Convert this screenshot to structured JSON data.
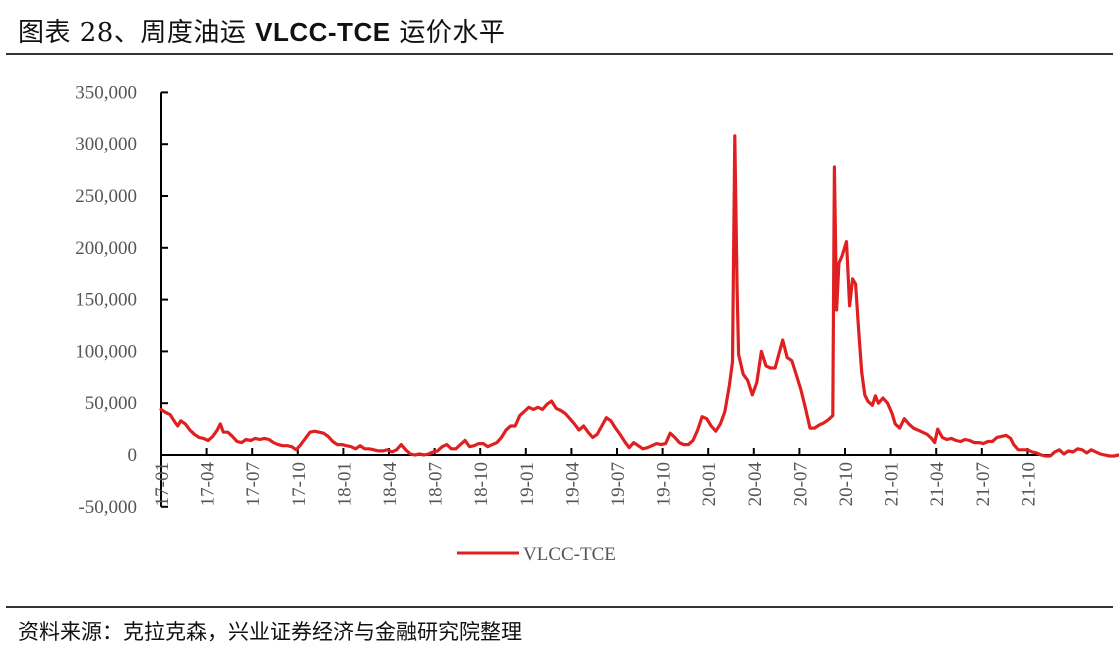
{
  "header": {
    "title_prefix": "图表 28、周度油运 ",
    "title_latin": "VLCC-TCE",
    "title_suffix": " 运价水平"
  },
  "footer": {
    "source": "资料来源：克拉克森，兴业证券经济与金融研究院整理"
  },
  "colors": {
    "series": "#e02020",
    "axis": "#000000",
    "tick_text": "#555555"
  },
  "chart_data": {
    "type": "line",
    "title": "周度油运 VLCC-TCE 运价水平",
    "xlabel": "",
    "ylabel": "",
    "ylim": [
      -50000,
      350000
    ],
    "yticks": [
      -50000,
      0,
      50000,
      100000,
      150000,
      200000,
      250000,
      300000,
      350000
    ],
    "ytick_labels": [
      "-50,000",
      "0",
      "50,000",
      "100,000",
      "150,000",
      "200,000",
      "250,000",
      "300,000",
      "350,000"
    ],
    "xtick_labels": [
      "17-01",
      "17-04",
      "17-07",
      "17-10",
      "18-01",
      "18-04",
      "18-07",
      "18-10",
      "19-01",
      "19-04",
      "19-07",
      "19-10",
      "20-01",
      "20-04",
      "20-07",
      "20-10",
      "21-01",
      "21-04",
      "21-07",
      "21-10"
    ],
    "x_unit": "months since 2017-01",
    "grid": false,
    "legend": {
      "position": "bottom-center",
      "entries": [
        "VLCC-TCE"
      ]
    },
    "series": [
      {
        "name": "VLCC-TCE",
        "points": [
          [
            0.0,
            44000
          ],
          [
            0.3,
            41000
          ],
          [
            0.6,
            39000
          ],
          [
            0.9,
            32000
          ],
          [
            1.1,
            28000
          ],
          [
            1.3,
            33000
          ],
          [
            1.6,
            30000
          ],
          [
            1.9,
            24000
          ],
          [
            2.2,
            20000
          ],
          [
            2.5,
            17000
          ],
          [
            2.8,
            16000
          ],
          [
            3.1,
            14000
          ],
          [
            3.4,
            18000
          ],
          [
            3.7,
            24000
          ],
          [
            3.9,
            30000
          ],
          [
            4.1,
            22000
          ],
          [
            4.4,
            22000
          ],
          [
            4.7,
            18000
          ],
          [
            5.0,
            13000
          ],
          [
            5.3,
            12000
          ],
          [
            5.6,
            15000
          ],
          [
            5.9,
            14000
          ],
          [
            6.2,
            16000
          ],
          [
            6.5,
            15000
          ],
          [
            6.8,
            16000
          ],
          [
            7.1,
            15000
          ],
          [
            7.4,
            12000
          ],
          [
            7.7,
            10000
          ],
          [
            8.0,
            9000
          ],
          [
            8.3,
            9000
          ],
          [
            8.6,
            8000
          ],
          [
            8.9,
            5000
          ],
          [
            9.2,
            10000
          ],
          [
            9.5,
            16000
          ],
          [
            9.8,
            22000
          ],
          [
            10.1,
            23000
          ],
          [
            10.4,
            22000
          ],
          [
            10.7,
            21000
          ],
          [
            11.0,
            18000
          ],
          [
            11.3,
            13000
          ],
          [
            11.6,
            10000
          ],
          [
            11.9,
            10000
          ],
          [
            12.2,
            9000
          ],
          [
            12.5,
            8000
          ],
          [
            12.8,
            6000
          ],
          [
            13.1,
            9000
          ],
          [
            13.4,
            6000
          ],
          [
            13.7,
            6000
          ],
          [
            14.0,
            5000
          ],
          [
            14.3,
            4000
          ],
          [
            14.6,
            4000
          ],
          [
            14.9,
            5000
          ],
          [
            15.2,
            3000
          ],
          [
            15.5,
            5000
          ],
          [
            15.8,
            10000
          ],
          [
            16.1,
            5000
          ],
          [
            16.4,
            1000
          ],
          [
            16.7,
            0
          ],
          [
            17.0,
            1000
          ],
          [
            17.3,
            0
          ],
          [
            17.6,
            1000
          ],
          [
            17.9,
            3000
          ],
          [
            18.2,
            4000
          ],
          [
            18.5,
            8000
          ],
          [
            18.8,
            10000
          ],
          [
            19.1,
            6000
          ],
          [
            19.4,
            6000
          ],
          [
            19.7,
            10000
          ],
          [
            20.0,
            14000
          ],
          [
            20.3,
            8000
          ],
          [
            20.6,
            9000
          ],
          [
            20.9,
            11000
          ],
          [
            21.2,
            11000
          ],
          [
            21.5,
            8000
          ],
          [
            21.8,
            10000
          ],
          [
            22.1,
            12000
          ],
          [
            22.4,
            17000
          ],
          [
            22.7,
            24000
          ],
          [
            23.0,
            28000
          ],
          [
            23.3,
            28000
          ],
          [
            23.6,
            38000
          ],
          [
            23.9,
            42000
          ],
          [
            24.2,
            46000
          ],
          [
            24.5,
            44000
          ],
          [
            24.8,
            46000
          ],
          [
            25.1,
            44000
          ],
          [
            25.4,
            49000
          ],
          [
            25.7,
            52000
          ],
          [
            26.0,
            45000
          ],
          [
            26.3,
            43000
          ],
          [
            26.6,
            40000
          ],
          [
            26.9,
            35000
          ],
          [
            27.2,
            30000
          ],
          [
            27.5,
            24000
          ],
          [
            27.8,
            28000
          ],
          [
            28.1,
            22000
          ],
          [
            28.4,
            17000
          ],
          [
            28.7,
            20000
          ],
          [
            29.0,
            28000
          ],
          [
            29.3,
            36000
          ],
          [
            29.6,
            33000
          ],
          [
            29.9,
            26000
          ],
          [
            30.2,
            20000
          ],
          [
            30.5,
            13000
          ],
          [
            30.8,
            7000
          ],
          [
            31.1,
            12000
          ],
          [
            31.4,
            9000
          ],
          [
            31.7,
            6000
          ],
          [
            32.0,
            7000
          ],
          [
            32.3,
            9000
          ],
          [
            32.6,
            11000
          ],
          [
            32.9,
            10000
          ],
          [
            33.2,
            11000
          ],
          [
            33.5,
            21000
          ],
          [
            33.8,
            17000
          ],
          [
            34.1,
            12000
          ],
          [
            34.4,
            10000
          ],
          [
            34.7,
            10000
          ],
          [
            35.0,
            14000
          ],
          [
            35.3,
            24000
          ],
          [
            35.6,
            37000
          ],
          [
            35.9,
            35000
          ],
          [
            36.2,
            28000
          ],
          [
            36.5,
            23000
          ],
          [
            36.8,
            30000
          ],
          [
            37.1,
            42000
          ],
          [
            37.4,
            68000
          ],
          [
            37.6,
            90000
          ],
          [
            37.75,
            308000
          ],
          [
            37.9,
            160000
          ],
          [
            38.0,
            97000
          ],
          [
            38.3,
            78000
          ],
          [
            38.6,
            72000
          ],
          [
            38.9,
            58000
          ],
          [
            39.2,
            70000
          ],
          [
            39.5,
            100000
          ],
          [
            39.8,
            86000
          ],
          [
            40.1,
            84000
          ],
          [
            40.4,
            84000
          ],
          [
            40.7,
            100000
          ],
          [
            40.9,
            111000
          ],
          [
            41.2,
            94000
          ],
          [
            41.5,
            91000
          ],
          [
            41.8,
            77000
          ],
          [
            42.1,
            63000
          ],
          [
            42.4,
            45000
          ],
          [
            42.7,
            26000
          ],
          [
            43.0,
            26000
          ],
          [
            43.3,
            29000
          ],
          [
            43.6,
            31000
          ],
          [
            43.9,
            34000
          ],
          [
            44.2,
            38000
          ],
          [
            44.3,
            278000
          ],
          [
            44.45,
            140000
          ],
          [
            44.6,
            185000
          ],
          [
            44.8,
            192000
          ],
          [
            45.1,
            206000
          ],
          [
            45.3,
            144000
          ],
          [
            45.5,
            170000
          ],
          [
            45.7,
            165000
          ],
          [
            45.9,
            120000
          ],
          [
            46.1,
            80000
          ],
          [
            46.3,
            58000
          ],
          [
            46.5,
            52000
          ],
          [
            46.8,
            48000
          ],
          [
            47.0,
            57000
          ],
          [
            47.2,
            50000
          ],
          [
            47.5,
            55000
          ],
          [
            47.8,
            50000
          ],
          [
            48.1,
            40000
          ],
          [
            48.3,
            30000
          ],
          [
            48.6,
            26000
          ],
          [
            48.9,
            35000
          ],
          [
            49.2,
            30000
          ],
          [
            49.5,
            26000
          ],
          [
            49.8,
            24000
          ],
          [
            50.1,
            22000
          ],
          [
            50.4,
            20000
          ],
          [
            50.7,
            16000
          ],
          [
            50.9,
            12000
          ],
          [
            51.1,
            25000
          ],
          [
            51.4,
            17000
          ],
          [
            51.7,
            15000
          ],
          [
            52.0,
            16000
          ],
          [
            52.3,
            14000
          ],
          [
            52.6,
            13000
          ],
          [
            52.9,
            15000
          ],
          [
            53.2,
            14000
          ],
          [
            53.5,
            12000
          ],
          [
            53.8,
            12000
          ],
          [
            54.1,
            11000
          ],
          [
            54.4,
            13000
          ],
          [
            54.7,
            13000
          ],
          [
            55.0,
            17000
          ],
          [
            55.3,
            18000
          ],
          [
            55.6,
            19000
          ],
          [
            55.9,
            16000
          ],
          [
            56.1,
            10000
          ],
          [
            56.4,
            5000
          ],
          [
            56.7,
            5000
          ],
          [
            57.0,
            5000
          ],
          [
            57.3,
            3000
          ],
          [
            57.6,
            2000
          ],
          [
            57.9,
            0
          ],
          [
            58.2,
            -1000
          ],
          [
            58.5,
            -1000
          ],
          [
            58.8,
            3000
          ],
          [
            59.1,
            5000
          ],
          [
            59.4,
            1000
          ],
          [
            59.7,
            4000
          ],
          [
            60.0,
            3000
          ],
          [
            60.3,
            6000
          ],
          [
            60.6,
            5000
          ],
          [
            60.9,
            2000
          ],
          [
            61.2,
            5000
          ],
          [
            61.5,
            3000
          ],
          [
            61.8,
            1000
          ],
          [
            62.1,
            0
          ],
          [
            62.4,
            -1000
          ],
          [
            62.7,
            -1000
          ],
          [
            63.0,
            0
          ],
          [
            63.3,
            -500
          ],
          [
            63.6,
            0
          ],
          [
            63.9,
            0
          ],
          [
            64.2,
            1000
          ],
          [
            64.5,
            1000
          ],
          [
            64.8,
            0
          ],
          [
            65.1,
            1000
          ],
          [
            65.4,
            1000
          ],
          [
            65.7,
            2000
          ],
          [
            66.0,
            3000
          ],
          [
            66.3,
            5000
          ],
          [
            66.6,
            7000
          ],
          [
            66.9,
            6000
          ],
          [
            67.2,
            5000
          ],
          [
            67.5,
            7000
          ],
          [
            67.8,
            9000
          ],
          [
            68.1,
            7000
          ],
          [
            68.4,
            5000
          ],
          [
            68.6,
            6000
          ],
          [
            68.8,
            4000
          ]
        ]
      }
    ]
  }
}
